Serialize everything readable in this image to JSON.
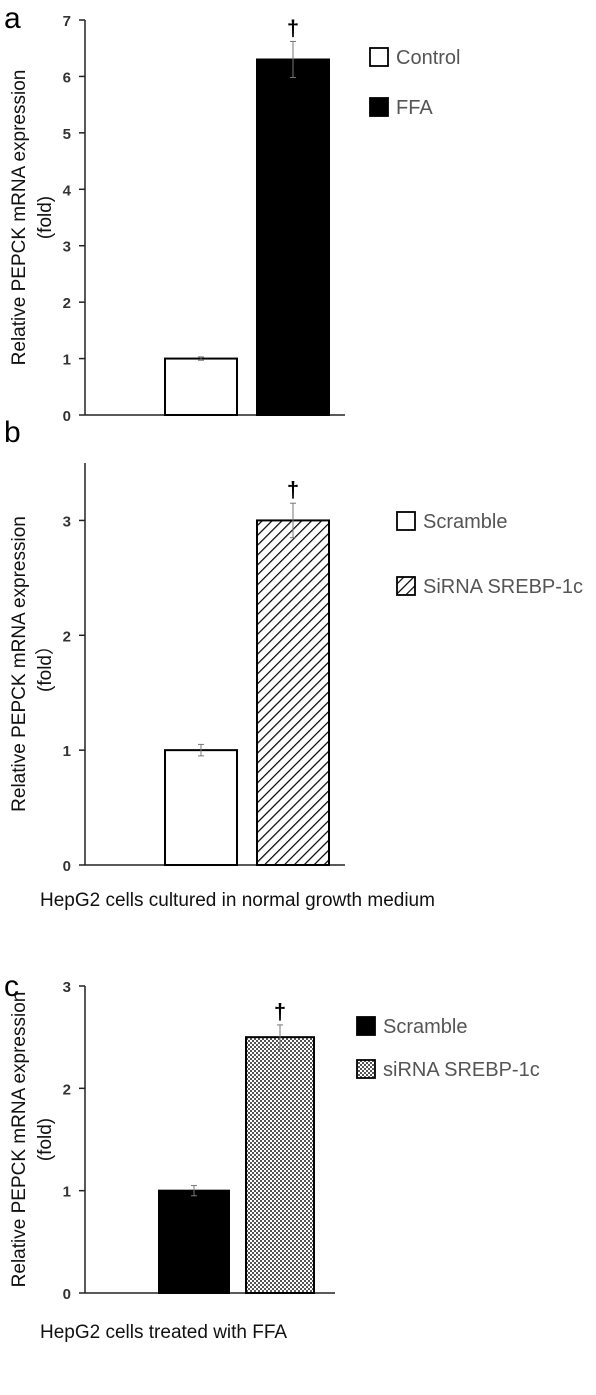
{
  "chart_data": [
    {
      "panel_label": "a",
      "type": "bar",
      "ylabel_line1": "Relative PEPCK mRNA expression",
      "ylabel_line2": "(fold)",
      "xlabel": "",
      "ylim": [
        0,
        7
      ],
      "yticks": [
        "0",
        "1",
        "2",
        "3",
        "4",
        "5",
        "6",
        "7"
      ],
      "series": [
        {
          "name": "Control",
          "value": 1.0,
          "error": 0.03,
          "fill": "white"
        },
        {
          "name": "FFA",
          "value": 6.3,
          "error": 0.32,
          "fill": "black"
        }
      ],
      "annotation": "†",
      "legend_position": "top-right"
    },
    {
      "panel_label": "b",
      "type": "bar",
      "ylabel_line1": "Relative PEPCK mRNA expression",
      "ylabel_line2": "(fold）",
      "xlabel": "HepG2 cells cultured in normal growth medium",
      "ylim": [
        0,
        3.5
      ],
      "yticks": [
        "0",
        "1",
        "2",
        "3"
      ],
      "series": [
        {
          "name": "Scramble",
          "value": 1.0,
          "error": 0.05,
          "fill": "white"
        },
        {
          "name": "SiRNA SREBP-1c",
          "value": 3.0,
          "error": 0.15,
          "fill": "hatch"
        }
      ],
      "annotation": "†",
      "legend_position": "top-right"
    },
    {
      "panel_label": "c",
      "type": "bar",
      "ylabel_line1": "Relative PEPCK mRNA expression",
      "ylabel_line2": "(fold)",
      "xlabel": "HepG2 cells treated with FFA",
      "ylim": [
        0,
        3
      ],
      "yticks": [
        "0",
        "1",
        "2",
        "3"
      ],
      "series": [
        {
          "name": "Scramble",
          "value": 1.0,
          "error": 0.05,
          "fill": "black"
        },
        {
          "name": "siRNA SREBP-1c",
          "value": 2.5,
          "error": 0.12,
          "fill": "grid"
        }
      ],
      "annotation": "†",
      "legend_position": "top-right"
    }
  ]
}
